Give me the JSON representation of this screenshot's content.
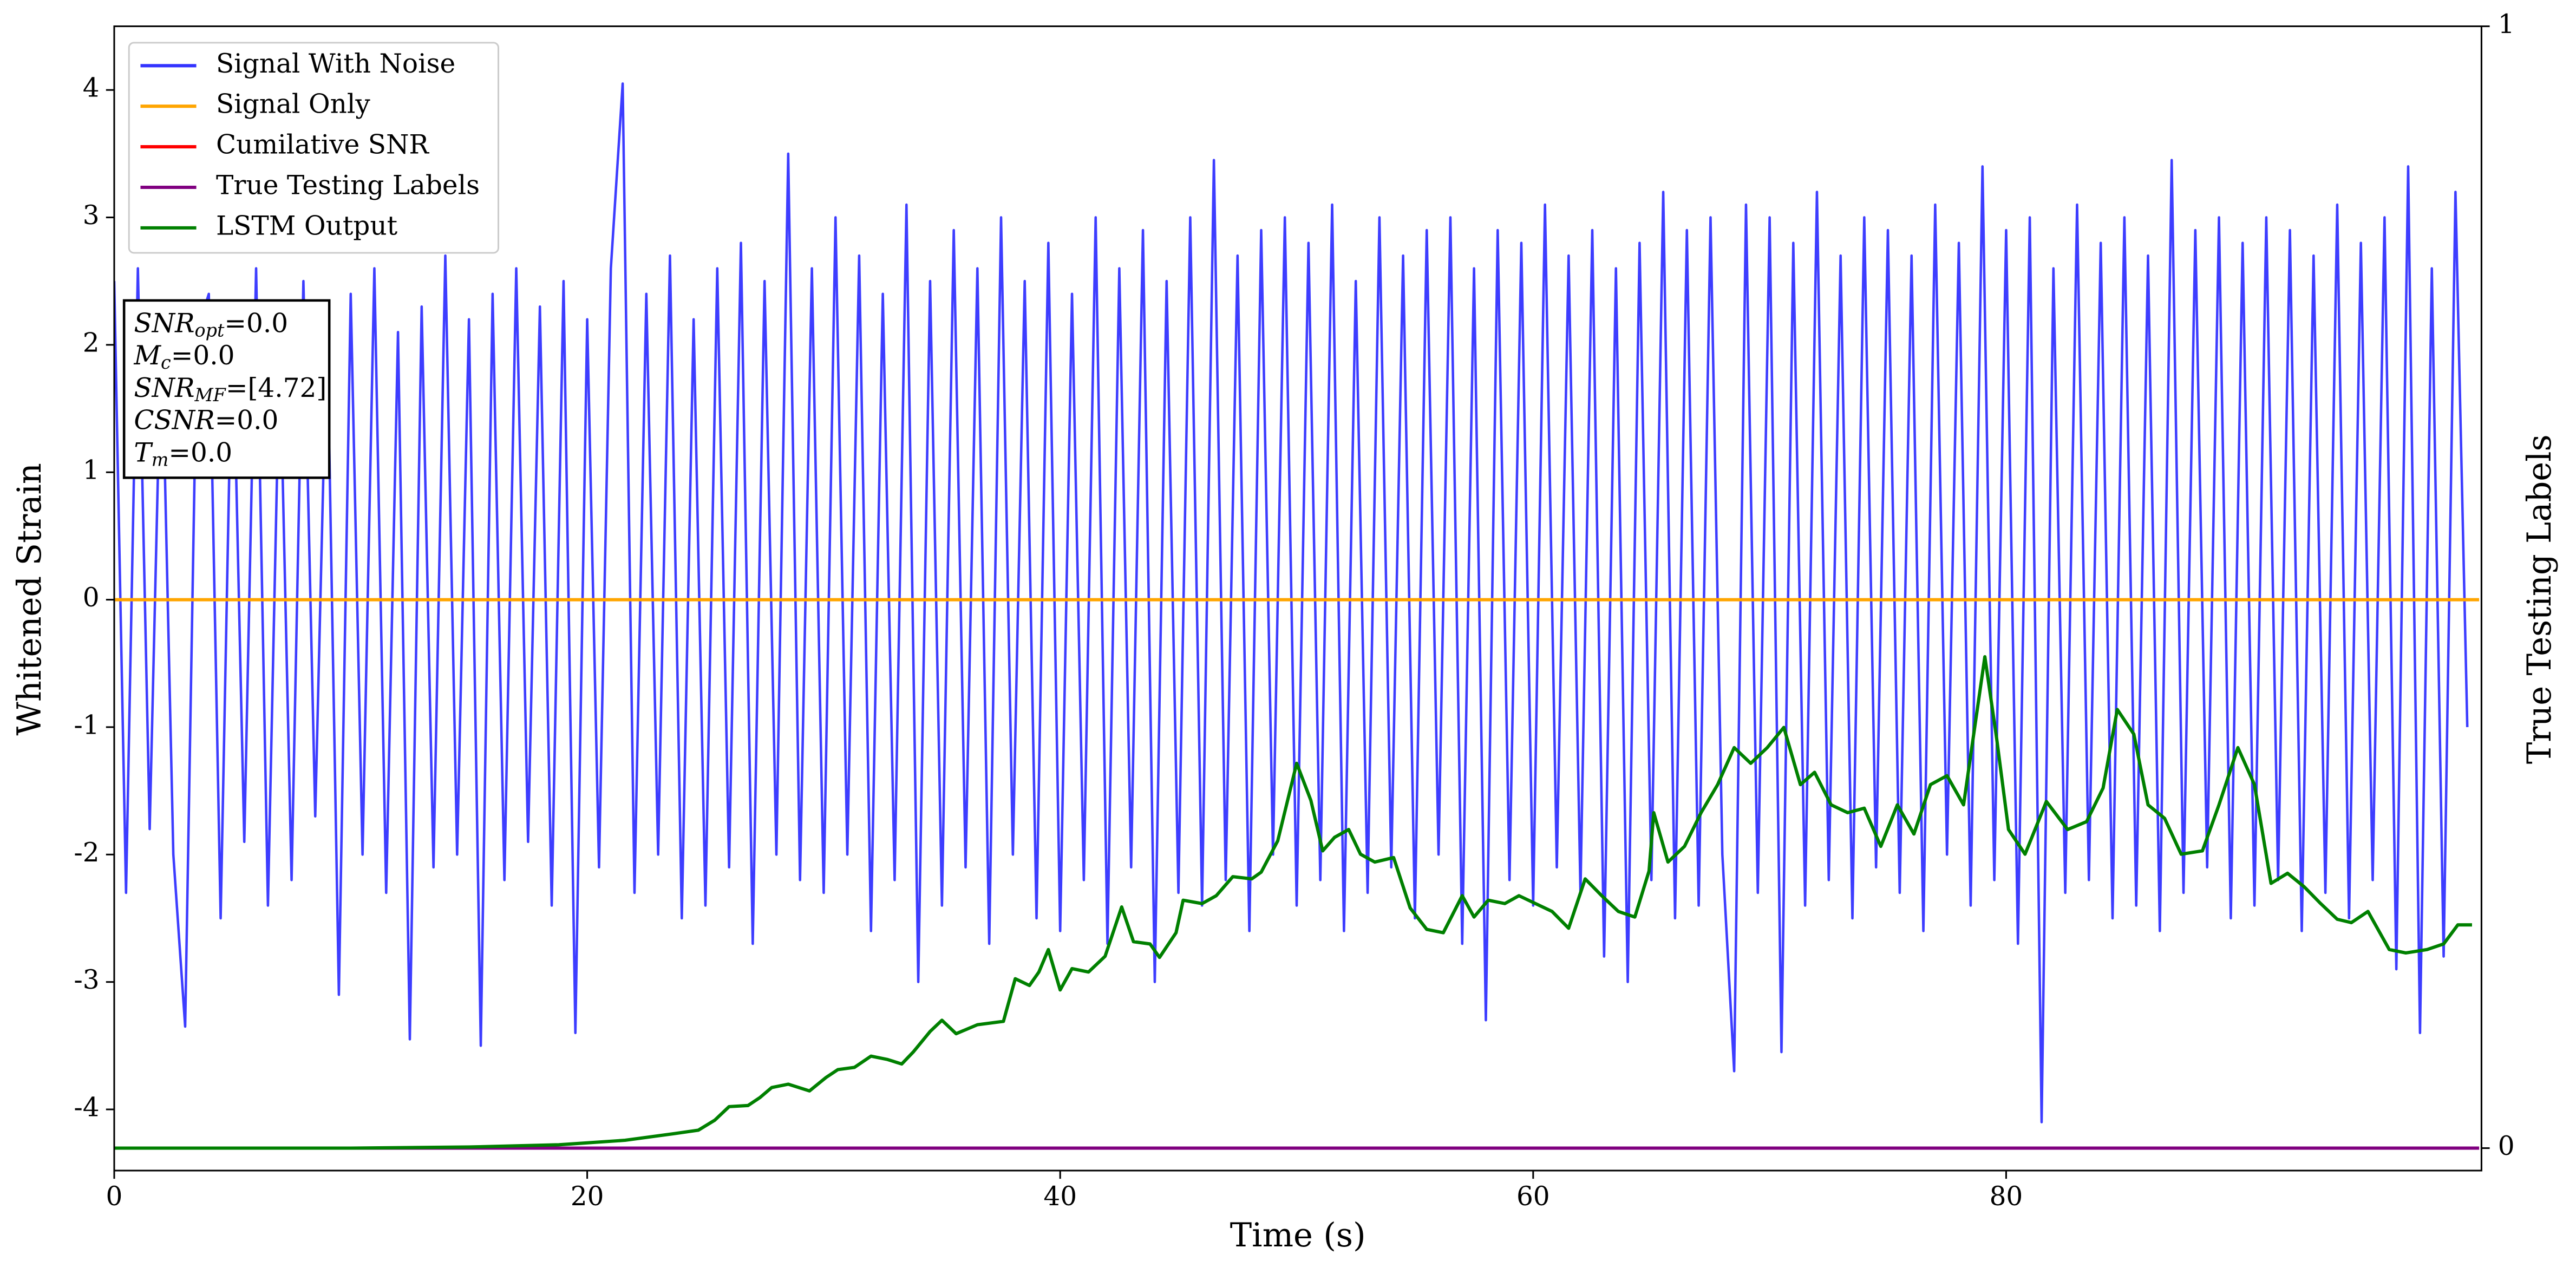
{
  "chart_data": {
    "type": "line",
    "xlabel": "Time (s)",
    "ylabel": "Whitened Strain",
    "y2label": "True Testing Labels",
    "xlim": [
      0,
      100.1
    ],
    "xticks": [
      0,
      20,
      40,
      60,
      80
    ],
    "ylim": [
      -4.48,
      4.5
    ],
    "yticks": [
      -4,
      -3,
      -2,
      -1,
      0,
      1,
      2,
      3,
      4
    ],
    "y2lim": [
      -0.02,
      1
    ],
    "y2ticks": [
      0,
      1
    ],
    "legend": "upper left",
    "annotation": [
      {
        "name": "SNR",
        "sub": "opt",
        "text": "=0.0"
      },
      {
        "name": "M",
        "sub": "c",
        "text": "=0.0"
      },
      {
        "name": "SNR",
        "sub": "MF",
        "text": "=[4.72]"
      },
      {
        "name": "CSNR",
        "text": "=0.0"
      },
      {
        "name": "T",
        "sub": "m",
        "text": "=0.0"
      }
    ],
    "series": [
      {
        "name": "Signal With Noise",
        "color": "#3333ff",
        "x": [
          0,
          0.5,
          1,
          1.5,
          2,
          2.5,
          3,
          3.5,
          4,
          4.5,
          5,
          5.5,
          6,
          6.5,
          7,
          7.5,
          8,
          8.5,
          9,
          9.5,
          10,
          10.5,
          11,
          11.5,
          12,
          12.5,
          13,
          13.5,
          14,
          14.5,
          15,
          15.5,
          16,
          16.5,
          17,
          17.5,
          18,
          18.5,
          19,
          19.5,
          20,
          20.5,
          21,
          21.5,
          22,
          22.5,
          23,
          23.5,
          24,
          24.5,
          25,
          25.5,
          26,
          26.5,
          27,
          27.5,
          28,
          28.5,
          29,
          29.5,
          30,
          30.5,
          31,
          31.5,
          32,
          32.5,
          33,
          33.5,
          34,
          34.5,
          35,
          35.5,
          36,
          36.5,
          37,
          37.5,
          38,
          38.5,
          39,
          39.5,
          40,
          40.5,
          41,
          41.5,
          42,
          42.5,
          43,
          43.5,
          44,
          44.5,
          45,
          45.5,
          46,
          46.5,
          47,
          47.5,
          48,
          48.5,
          49,
          49.5,
          50,
          50.5,
          51,
          51.5,
          52,
          52.5,
          53,
          53.5,
          54,
          54.5,
          55,
          55.5,
          56,
          56.5,
          57,
          57.5,
          58,
          58.5,
          59,
          59.5,
          60,
          60.5,
          61,
          61.5,
          62,
          62.5,
          63,
          63.5,
          64,
          64.5,
          65,
          65.5,
          66,
          66.5,
          67,
          67.5,
          68,
          68.5,
          69,
          69.5,
          70,
          70.5,
          71,
          71.5,
          72,
          72.5,
          73,
          73.5,
          74,
          74.5,
          75,
          75.5,
          76,
          76.5,
          77,
          77.5,
          78,
          78.5,
          79,
          79.5,
          80,
          80.5,
          81,
          81.5,
          82,
          82.5,
          83,
          83.5,
          84,
          84.5,
          85,
          85.5,
          86,
          86.5,
          87,
          87.5,
          88,
          88.5,
          89,
          89.5,
          90,
          90.5,
          91,
          91.5,
          92,
          92.5,
          93,
          93.5,
          94,
          94.5,
          95,
          95.5,
          96,
          96.5,
          97,
          97.5,
          98,
          98.5,
          99,
          99.5
        ],
        "values": [
          2.5,
          -2.3,
          2.6,
          -1.8,
          2.2,
          -2.0,
          -3.35,
          2.1,
          2.4,
          -2.5,
          2.3,
          -1.9,
          2.6,
          -2.4,
          2.0,
          -2.2,
          2.5,
          -1.7,
          2.2,
          -3.1,
          2.4,
          -2.0,
          2.6,
          -2.3,
          2.1,
          -3.45,
          2.3,
          -2.1,
          2.7,
          -2.0,
          2.2,
          -3.5,
          2.4,
          -2.2,
          2.6,
          -1.9,
          2.3,
          -2.4,
          2.5,
          -3.4,
          2.2,
          -2.1,
          2.6,
          4.05,
          -2.3,
          2.4,
          -2.0,
          2.7,
          -2.5,
          2.2,
          -2.4,
          2.6,
          -2.1,
          2.8,
          -2.7,
          2.5,
          -2.0,
          3.5,
          -2.2,
          2.6,
          -2.3,
          3.0,
          -2.0,
          2.7,
          -2.6,
          2.4,
          -2.2,
          3.1,
          -3.0,
          2.5,
          -2.4,
          2.9,
          -2.1,
          2.6,
          -2.7,
          3.0,
          -2.0,
          2.5,
          -2.5,
          2.8,
          -2.6,
          2.4,
          -2.2,
          3.0,
          -2.7,
          2.6,
          -2.1,
          2.9,
          -3.0,
          2.5,
          -2.3,
          3.0,
          -2.4,
          3.45,
          -2.2,
          2.7,
          -2.6,
          2.9,
          -2.0,
          3.0,
          -2.4,
          2.8,
          -2.2,
          3.1,
          -2.6,
          2.5,
          -2.3,
          3.0,
          -2.1,
          2.7,
          -2.5,
          2.9,
          -2.0,
          3.0,
          -2.7,
          2.6,
          -3.3,
          2.9,
          -2.2,
          2.8,
          -2.4,
          3.1,
          -2.1,
          2.7,
          -2.3,
          2.9,
          -2.8,
          2.6,
          -3.0,
          2.8,
          -2.2,
          3.2,
          -2.5,
          2.9,
          -2.4,
          3.0,
          -2.0,
          -3.7,
          3.1,
          -2.3,
          3.0,
          -3.55,
          2.8,
          -2.4,
          3.2,
          -2.2,
          2.7,
          -2.5,
          3.0,
          -2.1,
          2.9,
          -2.3,
          2.7,
          -2.6,
          3.1,
          -2.0,
          2.8,
          -2.4,
          3.4,
          -2.2,
          2.9,
          -2.7,
          3.0,
          -4.1,
          2.6,
          -2.3,
          3.1,
          -2.2,
          2.8,
          -2.5,
          3.0,
          -2.4,
          2.7,
          -2.6,
          3.45,
          -2.3,
          2.9,
          -2.1,
          3.0,
          -2.5,
          2.8,
          -2.4,
          3.0,
          -2.2,
          2.9,
          -2.6,
          2.7,
          -2.3,
          3.1,
          -2.5,
          2.8,
          -2.2,
          3.0,
          -2.9,
          3.4,
          -3.4,
          2.6,
          -2.8,
          3.2,
          -1.0
        ]
      },
      {
        "name": "Signal Only",
        "color": "#ffa500",
        "x": [
          0,
          100
        ],
        "values": [
          0,
          0
        ]
      },
      {
        "name": "Cumilative SNR",
        "color": "#ff0000",
        "axis": "y2",
        "x": [
          0,
          100
        ],
        "values": [
          0,
          0
        ]
      },
      {
        "name": "True Testing Labels",
        "color": "#800080",
        "axis": "y2",
        "x": [
          0,
          100
        ],
        "values": [
          0,
          0
        ]
      },
      {
        "name": "LSTM Output",
        "color": "#008000",
        "axis": "y2",
        "x": [
          0,
          10,
          15,
          18.8,
          21.6,
          23.7,
          24.7,
          25.4,
          26,
          26.8,
          27.3,
          27.8,
          28.5,
          29.4,
          30.1,
          30.6,
          31.3,
          32,
          32.7,
          33.3,
          33.8,
          34.5,
          35,
          35.6,
          36.5,
          37.6,
          38.1,
          38.7,
          39.1,
          39.5,
          40,
          40.5,
          41.2,
          41.9,
          42.6,
          43.1,
          43.8,
          44.2,
          44.9,
          45.2,
          46,
          46.6,
          47.3,
          48.1,
          48.5,
          49.2,
          50,
          50.6,
          51.1,
          51.6,
          52.2,
          52.7,
          53.3,
          54.1,
          54.8,
          55.5,
          56.2,
          57,
          57.5,
          58.1,
          58.8,
          59.4,
          60.1,
          60.8,
          61.5,
          62.2,
          62.9,
          63.6,
          64.3,
          64.9,
          65.1,
          65.7,
          66.4,
          67.1,
          67.8,
          68.5,
          69.2,
          69.9,
          70.6,
          71.3,
          71.9,
          72.6,
          73.3,
          74,
          74.7,
          75.4,
          76.1,
          76.8,
          77.5,
          78.2,
          79.1,
          79.6,
          80.1,
          80.8,
          81.7,
          82.6,
          83.4,
          84.1,
          84.7,
          85.4,
          86,
          86.7,
          87.4,
          88.3,
          89,
          89.8,
          90.5,
          91.2,
          91.9,
          92.6,
          93.3,
          94,
          94.6,
          95.3,
          96.2,
          96.9,
          97.8,
          98.5,
          99.1,
          99.7
        ],
        "values": [
          0,
          0,
          0.001,
          0.003,
          0.007,
          0.013,
          0.016,
          0.025,
          0.037,
          0.038,
          0.045,
          0.054,
          0.057,
          0.051,
          0.063,
          0.07,
          0.072,
          0.082,
          0.079,
          0.075,
          0.086,
          0.104,
          0.114,
          0.102,
          0.11,
          0.113,
          0.151,
          0.145,
          0.157,
          0.177,
          0.141,
          0.16,
          0.157,
          0.171,
          0.215,
          0.184,
          0.182,
          0.17,
          0.192,
          0.221,
          0.218,
          0.225,
          0.242,
          0.24,
          0.246,
          0.274,
          0.343,
          0.31,
          0.265,
          0.277,
          0.284,
          0.262,
          0.255,
          0.259,
          0.214,
          0.195,
          0.192,
          0.225,
          0.206,
          0.221,
          0.218,
          0.225,
          0.218,
          0.211,
          0.196,
          0.24,
          0.225,
          0.211,
          0.206,
          0.247,
          0.299,
          0.255,
          0.269,
          0.299,
          0.324,
          0.357,
          0.343,
          0.357,
          0.375,
          0.324,
          0.335,
          0.306,
          0.299,
          0.303,
          0.269,
          0.306,
          0.28,
          0.324,
          0.332,
          0.306,
          0.438,
          0.365,
          0.284,
          0.262,
          0.309,
          0.284,
          0.291,
          0.321,
          0.391,
          0.369,
          0.306,
          0.294,
          0.262,
          0.265,
          0.306,
          0.357,
          0.324,
          0.236,
          0.245,
          0.233,
          0.218,
          0.204,
          0.201,
          0.211,
          0.177,
          0.174,
          0.177,
          0.182,
          0.199,
          0.199
        ]
      }
    ]
  }
}
